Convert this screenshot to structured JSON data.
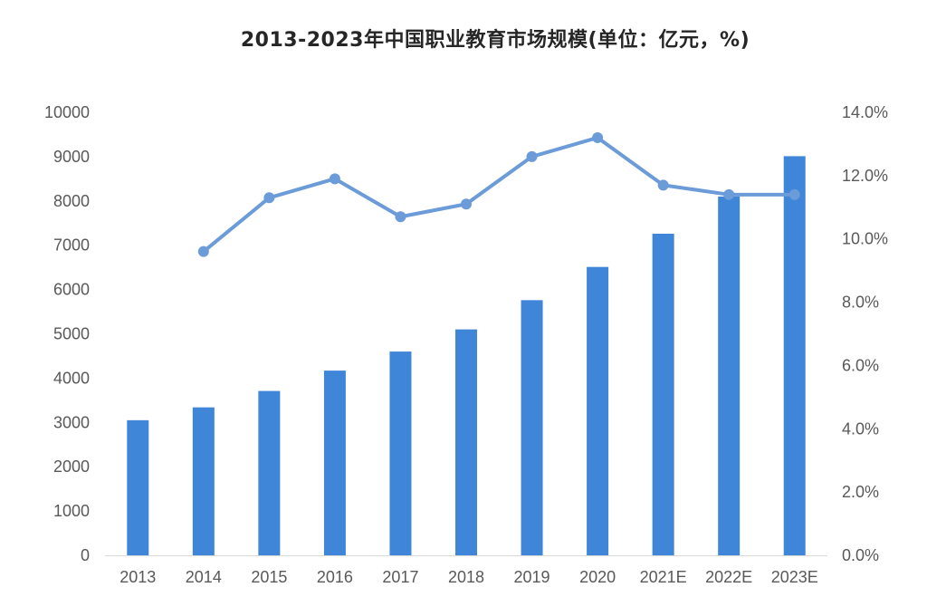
{
  "chart_data": {
    "title": "2013-2023年中国职业教育市场规模(单位：亿元，%)",
    "categories": [
      "2013",
      "2014",
      "2015",
      "2016",
      "2017",
      "2018",
      "2019",
      "2020",
      "2021E",
      "2022E",
      "2023E"
    ],
    "series": [
      {
        "type": "bar",
        "axis": "left",
        "color": "#3f86d9",
        "values": [
          3050,
          3340,
          3710,
          4170,
          4600,
          5100,
          5760,
          6510,
          7260,
          8100,
          9010
        ]
      },
      {
        "type": "line",
        "axis": "right",
        "color": "#6b9bd8",
        "values": [
          null,
          9.6,
          11.3,
          11.9,
          10.7,
          11.1,
          12.6,
          13.2,
          11.7,
          11.4,
          11.4
        ]
      }
    ],
    "left_axis": {
      "min": 0,
      "max": 10000,
      "ticks": [
        "0",
        "1000",
        "2000",
        "3000",
        "4000",
        "5000",
        "6000",
        "7000",
        "8000",
        "9000",
        "10000"
      ]
    },
    "right_axis": {
      "min": 0,
      "max": 14,
      "ticks": [
        "0.0%",
        "2.0%",
        "4.0%",
        "6.0%",
        "8.0%",
        "10.0%",
        "12.0%",
        "14.0%"
      ]
    },
    "grid": false,
    "legend": "none"
  }
}
